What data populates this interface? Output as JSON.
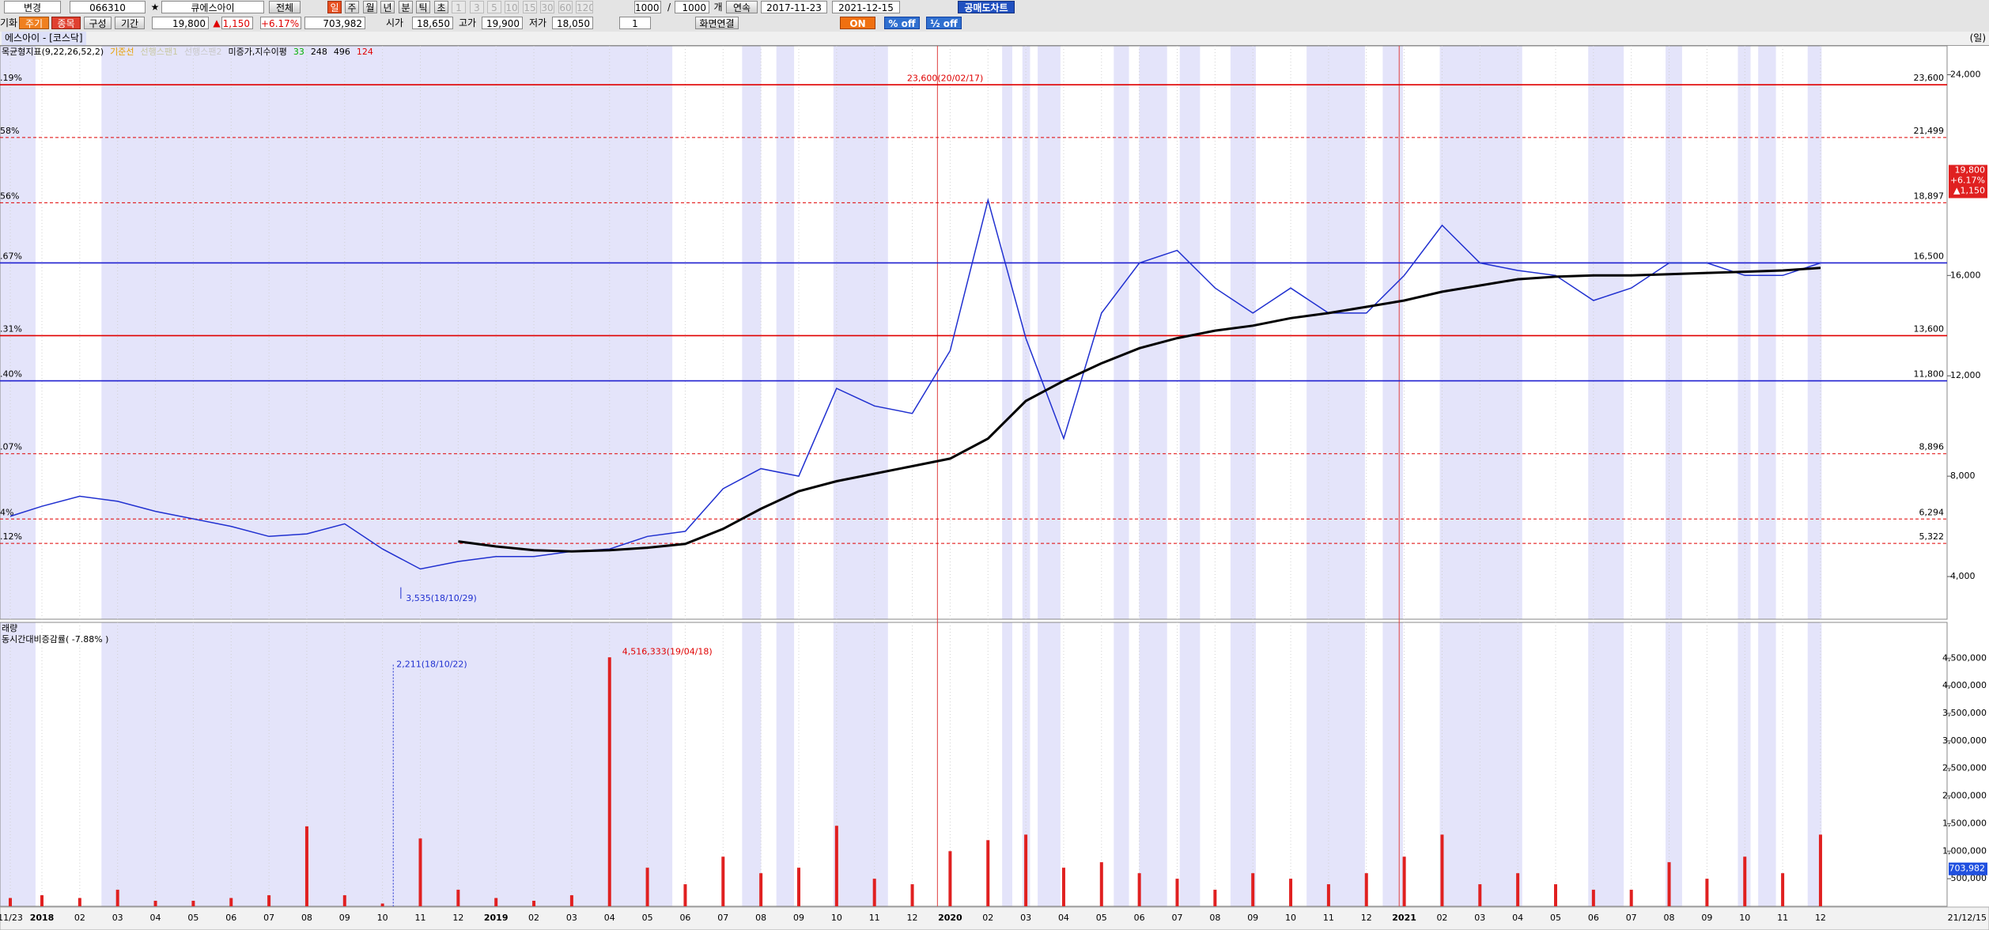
{
  "toolbar": {
    "row1": [
      "변경",
      "066310",
      "★",
      "큐에스아이",
      "전체",
      "일",
      "주",
      "월",
      "년",
      "분",
      "틱",
      "초",
      "1",
      "3",
      "5",
      "10",
      "15",
      "30",
      "60",
      "120",
      "1000",
      "/",
      "1000",
      "개",
      "연속",
      "2017-11-23",
      "2021-12-15",
      "공매도차트"
    ],
    "row2": [
      "기화",
      "주기",
      "종목",
      "구성",
      "기간",
      "19,800",
      "▲",
      "1,150",
      "+6.17%",
      "703,982",
      "시가",
      "18,650",
      "고가",
      "19,900",
      "저가",
      "18,050",
      "1",
      "화면연결",
      "ON",
      "% off",
      "½ off"
    ]
  },
  "header": {
    "title": "에스아이 - [코스닥]",
    "period": "(일)"
  },
  "chart_data": [
    {
      "type": "line",
      "indicators": [
        {
          "text": "목균형지표(9,22,26,52,2)",
          "color": "#000000"
        },
        {
          "text": "기준선",
          "color": "#e8a000"
        },
        {
          "text": "선행스팬1",
          "color": "#c8c8a0"
        },
        {
          "text": "선행스팬2",
          "color": "#c8c8c8"
        },
        {
          "text": "미증가,지수이평",
          "color": "#000000"
        },
        {
          "text": "33",
          "color": "#00b000"
        },
        {
          "text": "248",
          "color": "#000000"
        },
        {
          "text": "496",
          "color": "#000000"
        },
        {
          "text": "124",
          "color": "#e00000"
        }
      ],
      "categories": [
        "11/23",
        "2018",
        "02",
        "03",
        "04",
        "05",
        "06",
        "07",
        "08",
        "09",
        "10",
        "11",
        "12",
        "2019",
        "02",
        "03",
        "04",
        "05",
        "06",
        "07",
        "08",
        "09",
        "10",
        "11",
        "12",
        "2020",
        "02",
        "03",
        "04",
        "05",
        "06",
        "07",
        "08",
        "09",
        "10",
        "11",
        "12",
        "2021",
        "02",
        "03",
        "04",
        "05",
        "06",
        "07",
        "08",
        "09",
        "10",
        "11",
        "12"
      ],
      "series": [
        {
          "color": "#2030d0",
          "values": [
            6400,
            6800,
            7200,
            7000,
            6600,
            6300,
            6000,
            5600,
            5700,
            6100,
            5100,
            4300,
            4600,
            4800,
            4800,
            5000,
            5100,
            5600,
            5800,
            7500,
            8300,
            8000,
            11500,
            10800,
            10500,
            13000,
            19000,
            13500,
            9500,
            14500,
            16500,
            17000,
            15500,
            14500,
            15500,
            14500,
            14500,
            16000,
            18000,
            16500,
            16200,
            16000,
            15000,
            15500,
            16500,
            16500,
            16000,
            16000,
            16500
          ]
        },
        {
          "color": "#000000",
          "values": [
            null,
            null,
            null,
            null,
            null,
            null,
            null,
            null,
            null,
            null,
            null,
            null,
            5400,
            5200,
            5050,
            5000,
            5050,
            5150,
            5300,
            5900,
            6700,
            7400,
            7800,
            8100,
            8400,
            8700,
            9500,
            11000,
            11800,
            12500,
            13100,
            13500,
            13800,
            14000,
            14300,
            14500,
            14750,
            15000,
            15350,
            15600,
            15850,
            15950,
            16000,
            16000,
            16050,
            16100,
            16150,
            16200,
            16300
          ]
        }
      ],
      "ylim": [
        2300,
        25150
      ],
      "yticks": [
        {
          "value": 4000,
          "label": "4,000"
        },
        {
          "value": 8000,
          "label": "8,000"
        },
        {
          "value": 12000,
          "label": "12,000"
        },
        {
          "value": 16000,
          "label": "16,000"
        },
        {
          "value": 24000,
          "label": "24,000"
        }
      ],
      "levels": [
        {
          "value": 23600,
          "label": "23,600",
          "left_label": ".19%",
          "color": "#e00000",
          "dashed": false
        },
        {
          "value": 21499,
          "label": "21,499",
          "left_label": "58%",
          "color": "#e00000",
          "dashed": true
        },
        {
          "value": 18897,
          "label": "18,897",
          "left_label": "56%",
          "color": "#e00000",
          "dashed": true
        },
        {
          "value": 16500,
          "label": "16,500",
          "left_label": ".67%",
          "color": "#2020d0",
          "dashed": false
        },
        {
          "value": 13600,
          "label": "13,600",
          "left_label": ".31%",
          "color": "#e00000",
          "dashed": false
        },
        {
          "value": 11800,
          "label": "11,800",
          "left_label": ".40%",
          "color": "#2020d0",
          "dashed": false
        },
        {
          "value": 8896,
          "label": "8,896",
          "left_label": ".07%",
          "color": "#e00000",
          "dashed": true
        },
        {
          "value": 6294,
          "label": "6,294",
          "left_label": "4%",
          "color": "#e00000",
          "dashed": true
        },
        {
          "value": 5322,
          "label": "5,322",
          "left_label": ".12%",
          "color": "#e00000",
          "dashed": true
        }
      ],
      "annotations": [
        "23,600(20/02/17)",
        "3,535(18/10/29)"
      ],
      "price_box": [
        "19,800",
        "+6.17%",
        "▲1,150"
      ],
      "end_label": "21/12/15"
    },
    {
      "type": "bar",
      "title": "래량",
      "subtitle": "동시간대비증감률( -7.88% )",
      "color": "#e02020",
      "values": [
        150000,
        200000,
        150000,
        300000,
        100000,
        100000,
        150000,
        200000,
        1450000,
        200000,
        50000,
        1230000,
        300000,
        150000,
        100000,
        200000,
        4516333,
        700000,
        400000,
        900000,
        600000,
        700000,
        1460000,
        500000,
        400000,
        1000000,
        1200000,
        1300000,
        700000,
        800000,
        600000,
        500000,
        300000,
        600000,
        500000,
        400000,
        600000,
        900000,
        1300000,
        400000,
        600000,
        400000,
        300000,
        300000,
        800000,
        500000,
        900000,
        600000,
        1300000
      ],
      "ylim": [
        0,
        5150000
      ],
      "yticks": [
        {
          "value": 500000,
          "label": "500,000"
        },
        {
          "value": 1000000,
          "label": "1,000,000"
        },
        {
          "value": 1500000,
          "label": "1,500,000"
        },
        {
          "value": 2000000,
          "label": "2,000,000"
        },
        {
          "value": 2500000,
          "label": "2,500,000"
        },
        {
          "value": 3000000,
          "label": "3,000,000"
        },
        {
          "value": 3500000,
          "label": "3,500,000"
        },
        {
          "value": 4000000,
          "label": "4,000,000"
        },
        {
          "value": 4500000,
          "label": "4,500,000"
        }
      ],
      "annotations": [
        "4,516,333(19/04/18)",
        "2,211(18/10/22)"
      ],
      "value_box": "703,982"
    }
  ]
}
